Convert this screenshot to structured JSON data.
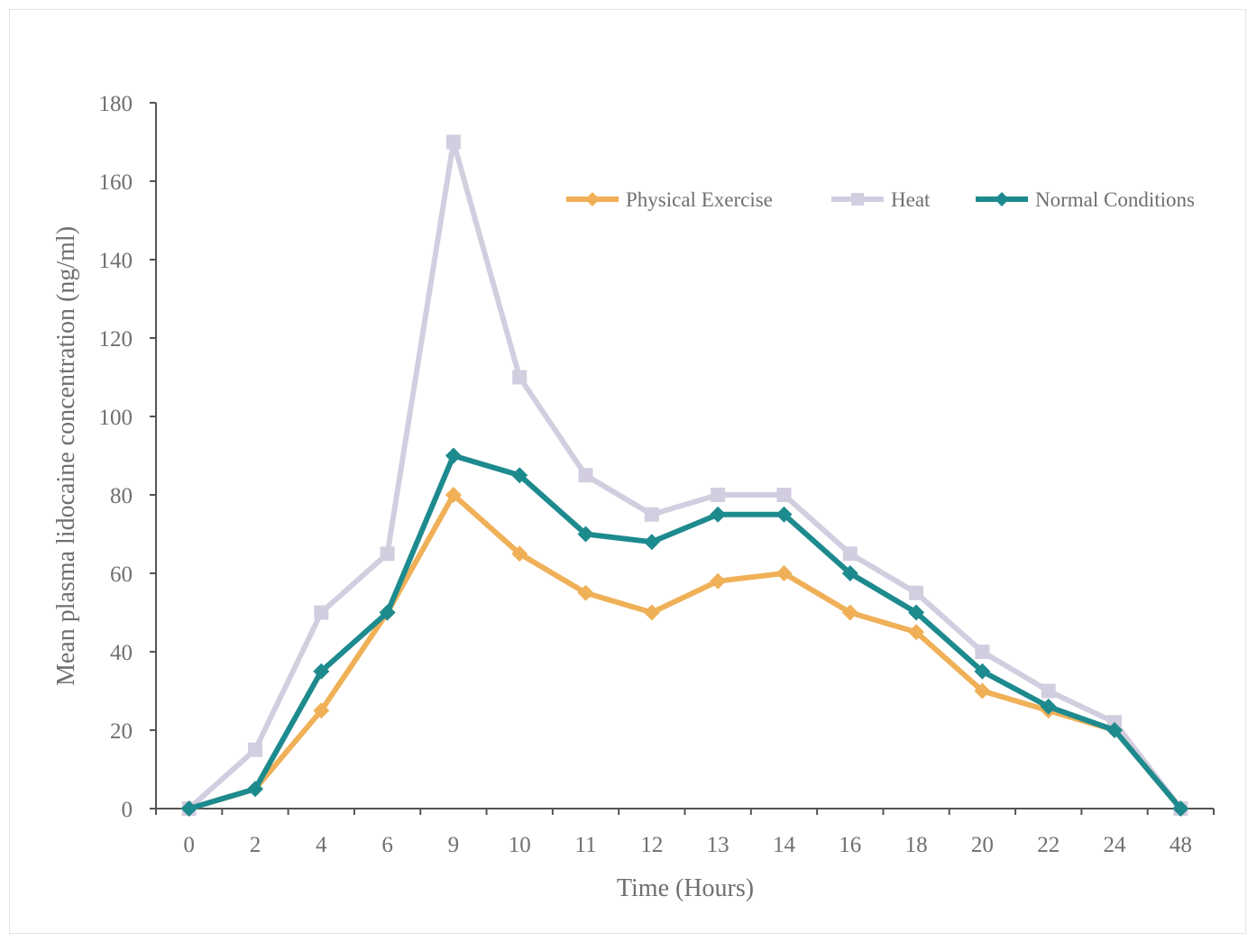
{
  "chart_data": {
    "type": "line",
    "xlabel": "Time (Hours)",
    "ylabel": "Mean plasma lidocaine concentration (ng/ml)",
    "categories": [
      "0",
      "2",
      "4",
      "6",
      "9",
      "10",
      "11",
      "12",
      "13",
      "14",
      "16",
      "18",
      "20",
      "22",
      "24",
      "48"
    ],
    "ylim": [
      0,
      180
    ],
    "yticks": [
      "0",
      "20",
      "40",
      "60",
      "80",
      "100",
      "120",
      "140",
      "160",
      "180"
    ],
    "grid": false,
    "legend_position": "top-right",
    "series": [
      {
        "name": "Physical Exercise",
        "color": "#f0b057",
        "marker": "diamond",
        "values": [
          0,
          5,
          25,
          50,
          80,
          65,
          55,
          50,
          58,
          60,
          50,
          45,
          30,
          25,
          20,
          0
        ]
      },
      {
        "name": "Heat",
        "color": "#d3cde0",
        "marker": "square",
        "values": [
          0,
          15,
          50,
          65,
          170,
          110,
          85,
          75,
          80,
          80,
          65,
          55,
          40,
          30,
          22,
          0
        ]
      },
      {
        "name": "Normal Conditions",
        "color": "#1d8a8e",
        "marker": "diamond",
        "values": [
          0,
          5,
          35,
          50,
          90,
          85,
          70,
          68,
          75,
          75,
          60,
          50,
          35,
          26,
          20,
          0
        ]
      }
    ]
  }
}
